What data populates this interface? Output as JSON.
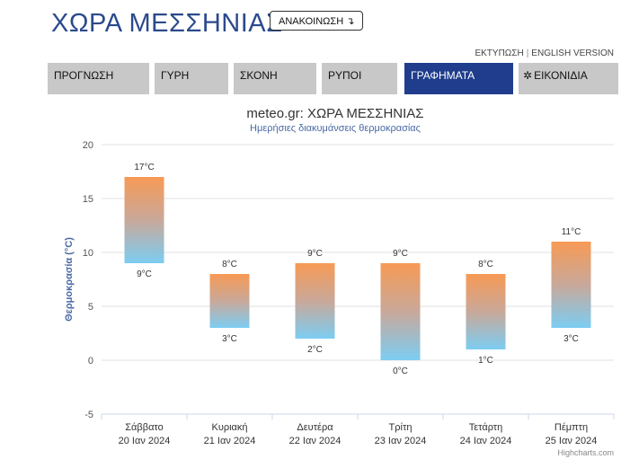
{
  "header": {
    "title": "ΧΩΡΑ ΜΕΣΣΗΝΙΑΣ",
    "announcement_label": "ΑΝΑΚΟΙΝΩΣΗ ↴"
  },
  "links": {
    "print": "ΕΚΤΥΠΩΣΗ",
    "separator": "|",
    "english": "ENGLISH VERSION"
  },
  "tabs": [
    {
      "label": "ΠΡΟΓΝΩΣΗ",
      "active": false
    },
    {
      "label": "ΓΥΡΗ",
      "active": false
    },
    {
      "label": "ΣΚΟΝΗ",
      "active": false
    },
    {
      "label": "ΡΥΠΟΙ",
      "active": false
    },
    {
      "label": "ΓΡΑΦΗΜΑΤΑ",
      "active": true
    },
    {
      "label": "ΕΙΚΟΝΙΔΙΑ",
      "active": false,
      "icon": "gear-icon"
    }
  ],
  "colors": {
    "accent": "#1f3d8c",
    "tab_bg": "#c8c8c8",
    "bar_top": "#f79a55",
    "bar_bottom": "#7ccdf2"
  },
  "chart_data": {
    "type": "bar",
    "subtype": "columnrange",
    "title": "meteo.gr: ΧΩΡΑ ΜΕΣΣΗΝΙΑΣ",
    "subtitle": "Ημερήσιες διακυμάνσεις θερμοκρασίας",
    "ylabel": "Θερμοκρασία (°C)",
    "xlabel": "",
    "ylim": [
      -5,
      20
    ],
    "yticks": [
      -5,
      0,
      5,
      10,
      15,
      20
    ],
    "grid": true,
    "legend": "none",
    "categories": [
      {
        "day": "Σάββατο",
        "date": "20 Ιαν 2024"
      },
      {
        "day": "Κυριακή",
        "date": "21 Ιαν 2024"
      },
      {
        "day": "Δευτέρα",
        "date": "22 Ιαν 2024"
      },
      {
        "day": "Τρίτη",
        "date": "23 Ιαν 2024"
      },
      {
        "day": "Τετάρτη",
        "date": "24 Ιαν 2024"
      },
      {
        "day": "Πέμπτη",
        "date": "25 Ιαν 2024"
      }
    ],
    "series": [
      {
        "low": [
          9,
          3,
          2,
          0,
          1,
          3
        ],
        "high": [
          17,
          8,
          9,
          9,
          8,
          11
        ]
      }
    ],
    "unit": "°C",
    "credit": "Highcharts.com"
  }
}
